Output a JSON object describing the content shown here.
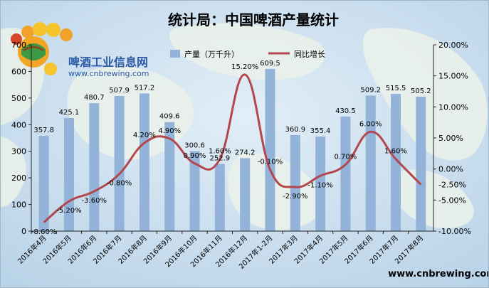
{
  "title": "统计局：中国啤酒产量统计",
  "logo": {
    "name": "啤酒工业信息网",
    "url": "www.cnbrewing.com"
  },
  "watermark": "www.cnbrewing.com",
  "legend": {
    "bar_label": "产量（万千升）",
    "line_label": "同比增长"
  },
  "colors": {
    "bar": "#93b3d9",
    "line": "#b3474e",
    "background": "#c5dced",
    "land": "#e9f0e6",
    "title": "#000000"
  },
  "chart_data": {
    "type": "bar",
    "categories": [
      "2016年4月",
      "2016年5月",
      "2016年6月",
      "2016年7月",
      "2016年8月",
      "2016年9月",
      "2016年10月",
      "2016年11月",
      "2016年12月",
      "2017年1-2月",
      "2017年3月",
      "2017年4月",
      "2017年5月",
      "2017年6月",
      "2017年7月",
      "2017年8月"
    ],
    "series": [
      {
        "name": "产量（万千升）",
        "type": "bar",
        "axis": "left",
        "values": [
          357.8,
          425.1,
          480.7,
          507.9,
          517.2,
          409.6,
          300.6,
          252.9,
          274.2,
          609.5,
          360.9,
          355.4,
          430.5,
          509.2,
          515.5,
          505.2
        ],
        "labels": [
          "357.8",
          "425.1",
          "480.7",
          "507.9",
          "517.2",
          "409.6",
          "300.6",
          "252.9",
          "274.2",
          "609.5",
          "360.9",
          "355.4",
          "430.5",
          "509.2",
          "515.5",
          "505.2"
        ]
      },
      {
        "name": "同比增长",
        "type": "line",
        "axis": "right",
        "values": [
          -8.6,
          -5.2,
          -3.6,
          -0.8,
          4.2,
          4.9,
          0.9,
          1.6,
          15.2,
          -0.1,
          -2.9,
          -1.1,
          0.7,
          6.0,
          1.6,
          -2.5
        ],
        "labels": [
          "-8.60%",
          "-5.20%",
          "-3.60%",
          "-0.80%",
          "4.20%",
          "4.90%",
          "0.90%",
          "1.60%",
          "15.20%",
          "-0.10%",
          "-2.90%",
          "-1.10%",
          "0.70%",
          "6.00%",
          "1.60%",
          ""
        ]
      }
    ],
    "ylim_left": [
      0,
      700
    ],
    "yticks_left": [
      "0",
      "100",
      "200",
      "300",
      "400",
      "500",
      "600",
      "700"
    ],
    "ylim_right": [
      -10,
      20
    ],
    "yticks_right": [
      "-10.00%",
      "-5.00%",
      "0.00%",
      "5.00%",
      "10.00%",
      "15.00%",
      "20.00%"
    ],
    "right_extra_tick": "-2.50%",
    "right_extra_value": -2.5,
    "grid": false,
    "legend_position": "top"
  }
}
